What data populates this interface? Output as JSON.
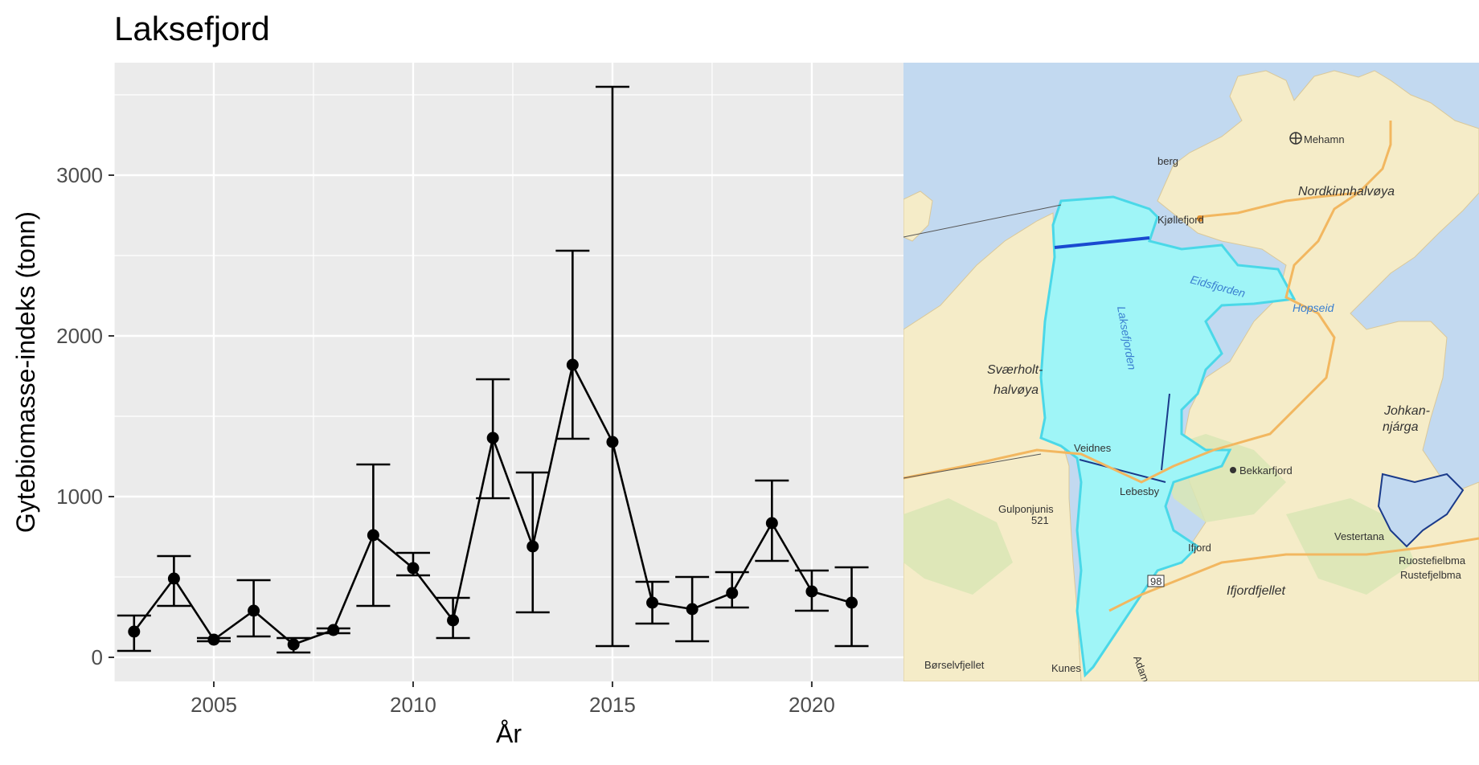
{
  "chart_data": {
    "type": "line",
    "title": "Laksefjord",
    "xlabel": "År",
    "ylabel": "Gytebiomasse-indeks (tonn)",
    "xlim": [
      2002.5,
      2022.3
    ],
    "ylim": [
      -150,
      3700
    ],
    "x_ticks": [
      2005,
      2010,
      2015,
      2020
    ],
    "y_ticks": [
      0,
      1000,
      2000,
      3000
    ],
    "x_tick_labels": [
      "2005",
      "2010",
      "2015",
      "2020"
    ],
    "y_tick_labels": [
      "0",
      "1000",
      "2000",
      "3000"
    ],
    "grid": true,
    "legend": "none",
    "series": [
      {
        "x": [
          2003,
          2004,
          2005,
          2006,
          2007,
          2008,
          2009,
          2010,
          2011,
          2012,
          2013,
          2014,
          2015,
          2016,
          2017,
          2018,
          2019,
          2020,
          2021
        ],
        "values": [
          160,
          490,
          110,
          290,
          80,
          170,
          760,
          555,
          230,
          1365,
          690,
          1820,
          1340,
          340,
          300,
          400,
          835,
          410,
          340
        ],
        "lower": [
          40,
          320,
          100,
          130,
          30,
          150,
          320,
          510,
          120,
          990,
          280,
          1360,
          70,
          210,
          100,
          310,
          600,
          290,
          70
        ],
        "upper": [
          260,
          630,
          120,
          480,
          120,
          180,
          1200,
          650,
          370,
          1730,
          1150,
          2530,
          3550,
          470,
          500,
          530,
          1100,
          540,
          560
        ]
      }
    ],
    "colors": {
      "panel": "#ebebeb",
      "grid_major": "#ffffff",
      "line": "#000000"
    }
  },
  "map": {
    "colors": {
      "sea": "#c2d9f0",
      "land": "#f5ecc8",
      "fjord": "#9ff5f7",
      "fjord_outline": "#4ad8e8",
      "road": "#f2b760",
      "green": "#d9e6b5"
    },
    "labels": [
      {
        "text": "Mehamn",
        "style": "plain"
      },
      {
        "text": "Nordkinnhalvøya",
        "style": "italic"
      },
      {
        "text": "Kjøllefjord",
        "style": "plain"
      },
      {
        "text": "Eidsfjorden",
        "style": "water"
      },
      {
        "text": "Hopseid",
        "style": "water"
      },
      {
        "text": "Laksefjorden",
        "style": "water"
      },
      {
        "text": "Sværholt-",
        "style": "italic"
      },
      {
        "text": "halvøya",
        "style": "italic"
      },
      {
        "text": "Veidnes",
        "style": "plain"
      },
      {
        "text": "Lebesby",
        "style": "plain"
      },
      {
        "text": "Bekkarfjord",
        "style": "plain"
      },
      {
        "text": "Johkan-",
        "style": "italic"
      },
      {
        "text": "njárga",
        "style": "italic"
      },
      {
        "text": "Gulponjunis",
        "style": "plain"
      },
      {
        "text": "521",
        "style": "plain"
      },
      {
        "text": "Ifjord",
        "style": "plain"
      },
      {
        "text": "Ifjordfjellet",
        "style": "italic"
      },
      {
        "text": "Vestertana",
        "style": "plain"
      },
      {
        "text": "Ruostefielbma",
        "style": "plain"
      },
      {
        "text": "Rustefjelbma",
        "style": "plain"
      },
      {
        "text": "Børselvfjellet",
        "style": "plain"
      },
      {
        "text": "Kunes",
        "style": "plain"
      },
      {
        "text": "Adamsfjord",
        "style": "plain"
      },
      {
        "text": "98",
        "style": "plain"
      },
      {
        "text": "berg",
        "style": "plain"
      },
      {
        "text": "Ifjord",
        "style": "plain"
      }
    ]
  }
}
